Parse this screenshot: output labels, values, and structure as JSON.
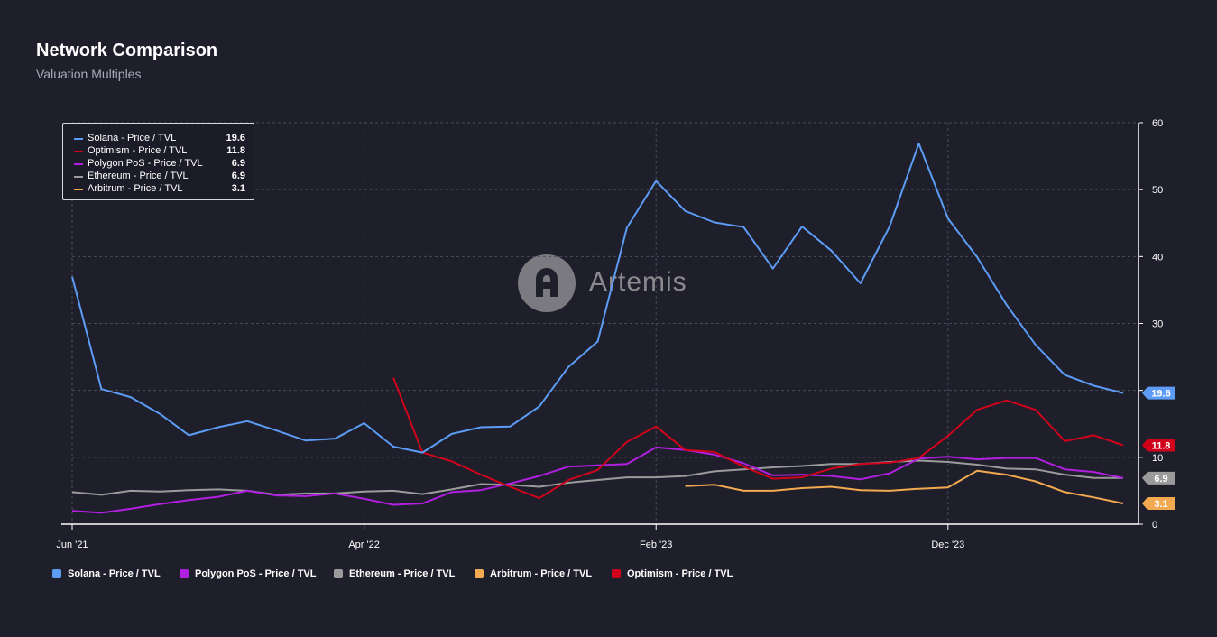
{
  "header": {
    "title": "Network Comparison",
    "subtitle": "Valuation Multiples"
  },
  "watermark": {
    "text": "Artemis",
    "icon": "artemis-logo-icon"
  },
  "tooltip": {
    "rows": [
      {
        "label": "Solana - Price / TVL",
        "value": "19.6",
        "color": "#5c9cf5"
      },
      {
        "label": "Optimism - Price / TVL",
        "value": "11.8",
        "color": "#d0021b"
      },
      {
        "label": "Polygon PoS - Price / TVL",
        "value": "6.9",
        "color": "#b11fe0"
      },
      {
        "label": "Ethereum - Price / TVL",
        "value": "6.9",
        "color": "#9b9b9b"
      },
      {
        "label": "Arbitrum - Price / TVL",
        "value": "3.1",
        "color": "#f2a950"
      }
    ]
  },
  "legend": {
    "items": [
      {
        "label": "Solana - Price / TVL",
        "color": "#5c9cf5"
      },
      {
        "label": "Polygon PoS - Price / TVL",
        "color": "#b11fe0"
      },
      {
        "label": "Ethereum - Price / TVL",
        "color": "#9b9b9b"
      },
      {
        "label": "Arbitrum - Price / TVL",
        "color": "#f2a950"
      },
      {
        "label": "Optimism - Price / TVL",
        "color": "#d0021b"
      }
    ]
  },
  "chart_data": {
    "type": "line",
    "title": "Network Comparison",
    "subtitle": "Valuation Multiples",
    "xlabel": "",
    "ylabel": "",
    "x_ticks": [
      {
        "label": "Jun '21",
        "index": 0
      },
      {
        "label": "Apr '22",
        "index": 10
      },
      {
        "label": "Feb '23",
        "index": 20
      },
      {
        "label": "Dec '23",
        "index": 30
      }
    ],
    "n_points": 37,
    "y_ticks": [
      0,
      10,
      20,
      30,
      40,
      50,
      60
    ],
    "ylim": [
      0,
      60
    ],
    "y_axis_side": "right",
    "grid": true,
    "series": [
      {
        "name": "Ethereum - Price / TVL",
        "color": "#9b9b9b",
        "end_label": "6.9",
        "start": 0,
        "values": [
          4.8,
          4.4,
          5.0,
          4.9,
          5.1,
          5.2,
          5.0,
          4.4,
          4.6,
          4.6,
          4.9,
          5.0,
          4.5,
          5.2,
          6.0,
          5.9,
          5.6,
          6.2,
          6.6,
          7.0,
          7.0,
          7.2,
          7.9,
          8.2,
          8.5,
          8.7,
          9.0,
          9.0,
          9.3,
          9.5,
          9.3,
          8.9,
          8.3,
          8.2,
          7.4,
          6.9,
          6.9
        ]
      },
      {
        "name": "Polygon PoS - Price / TVL",
        "color": "#b11fe0",
        "end_label": "6.9",
        "start": 0,
        "values": [
          2.0,
          1.7,
          2.3,
          3.0,
          3.6,
          4.1,
          5.0,
          4.3,
          4.2,
          4.6,
          3.8,
          2.9,
          3.1,
          4.8,
          5.1,
          6.1,
          7.2,
          8.6,
          8.8,
          9.0,
          11.5,
          11.1,
          10.4,
          9.1,
          7.3,
          7.4,
          7.2,
          6.7,
          7.6,
          9.8,
          10.1,
          9.7,
          9.9,
          9.9,
          8.2,
          7.8,
          6.9
        ]
      },
      {
        "name": "Arbitrum - Price / TVL",
        "color": "#f2a950",
        "end_label": "3.1",
        "start": 21,
        "values": [
          5.7,
          5.9,
          5.0,
          5.0,
          5.4,
          5.6,
          5.1,
          5.0,
          5.3,
          5.5,
          8.0,
          7.4,
          6.4,
          4.8,
          4.0,
          3.1
        ]
      },
      {
        "name": "Optimism - Price / TVL",
        "color": "#d0021b",
        "end_label": "11.8",
        "start": 11,
        "values": [
          21.9,
          10.7,
          9.4,
          7.4,
          5.6,
          3.9,
          6.6,
          8.1,
          12.3,
          14.6,
          11.1,
          10.8,
          8.6,
          6.8,
          7.0,
          8.3,
          9.0,
          9.2,
          9.9,
          13.2,
          17.1,
          18.5,
          17.1,
          12.4,
          13.3,
          11.8
        ]
      },
      {
        "name": "Solana - Price / TVL",
        "color": "#5c9cf5",
        "end_label": "19.6",
        "start": 0,
        "values": [
          37.0,
          20.2,
          19.0,
          16.5,
          13.3,
          14.5,
          15.4,
          14.0,
          12.5,
          12.8,
          15.1,
          11.6,
          10.7,
          13.5,
          14.5,
          14.6,
          17.6,
          23.5,
          27.3,
          44.3,
          51.3,
          46.8,
          45.1,
          44.4,
          38.2,
          44.5,
          40.9,
          36.0,
          44.5,
          56.9,
          45.7,
          39.9,
          32.8,
          26.8,
          22.3,
          20.7,
          19.6
        ]
      }
    ]
  }
}
